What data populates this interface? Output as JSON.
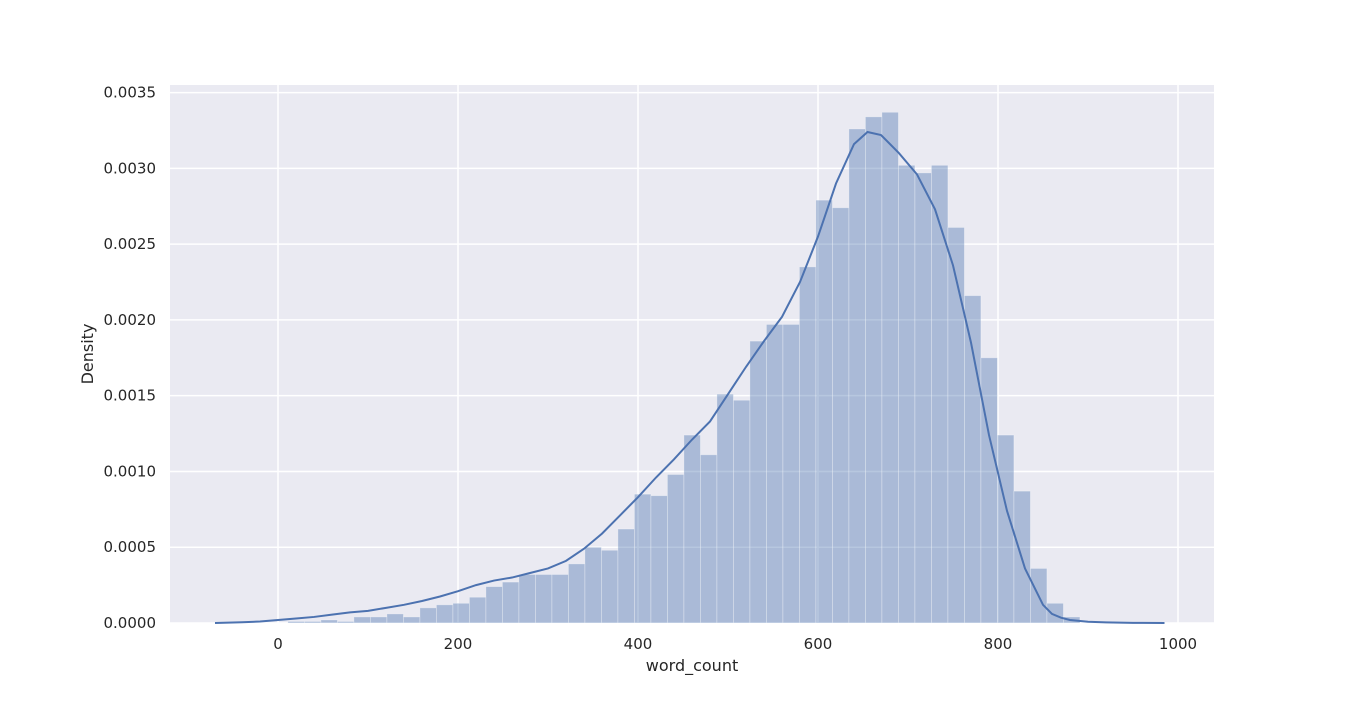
{
  "chart_data": {
    "type": "bar",
    "subtype": "histogram-with-kde",
    "title": "",
    "xlabel": "word_count",
    "ylabel": "Density",
    "xlim": [
      -120,
      1040
    ],
    "ylim": [
      0,
      0.00355
    ],
    "xticks": [
      0,
      200,
      400,
      600,
      800,
      1000
    ],
    "xtick_labels": [
      "0",
      "200",
      "400",
      "600",
      "800",
      "1000"
    ],
    "yticks": [
      0,
      0.0005,
      0.001,
      0.0015,
      0.002,
      0.0025,
      0.003,
      0.0035
    ],
    "ytick_labels": [
      "0.0000",
      "0.0005",
      "0.0010",
      "0.0015",
      "0.0020",
      "0.0025",
      "0.0030",
      "0.0035"
    ],
    "grid": true,
    "background": "#eaeaf2",
    "bar_color": "#4c72b0",
    "bar_alpha": 0.4,
    "line_color": "#4c72b0",
    "bins": {
      "left": [
        11,
        29.33,
        47.67,
        66,
        84.33,
        102.67,
        121,
        139.33,
        157.67,
        176,
        194.33,
        212.67,
        231,
        249.33,
        267.67,
        286,
        304.33,
        322.67,
        341,
        359.33,
        377.67,
        396,
        414.33,
        432.67,
        451,
        469.33,
        487.67,
        506,
        524.33,
        542.67,
        561,
        579.33,
        597.67,
        616,
        634.33,
        652.67,
        671,
        689.33,
        707.67,
        726,
        744.33,
        762.67,
        781,
        799.33,
        817.67,
        836,
        854.33,
        872.67
      ],
      "width": 18.33,
      "values": [
        1e-05,
        1e-05,
        2e-05,
        1e-05,
        4e-05,
        4e-05,
        6e-05,
        4e-05,
        0.0001,
        0.00012,
        0.00013,
        0.00017,
        0.00024,
        0.00027,
        0.00032,
        0.00032,
        0.00032,
        0.00039,
        0.0005,
        0.00048,
        0.00062,
        0.00085,
        0.00084,
        0.00098,
        0.00124,
        0.00111,
        0.00151,
        0.00147,
        0.00186,
        0.00197,
        0.00197,
        0.00235,
        0.00279,
        0.00274,
        0.00326,
        0.00334,
        0.00337,
        0.00302,
        0.00297,
        0.00302,
        0.00261,
        0.00216,
        0.00175,
        0.00124,
        0.00087,
        0.00036,
        0.00013,
        4e-05
      ]
    },
    "kde": {
      "x": [
        -70,
        -40,
        -20,
        0,
        20,
        40,
        60,
        80,
        100,
        120,
        140,
        160,
        180,
        200,
        220,
        240,
        260,
        280,
        300,
        320,
        340,
        360,
        380,
        400,
        420,
        440,
        460,
        480,
        500,
        520,
        540,
        560,
        580,
        600,
        620,
        640,
        655,
        670,
        690,
        710,
        730,
        750,
        770,
        790,
        810,
        830,
        850,
        860,
        870,
        880,
        900,
        920,
        950,
        985
      ],
      "y": [
        0,
        5e-06,
        1e-05,
        2e-05,
        3e-05,
        4e-05,
        5.5e-05,
        7e-05,
        8e-05,
        0.0001,
        0.00012,
        0.000145,
        0.000175,
        0.00021,
        0.00025,
        0.00028,
        0.0003,
        0.00033,
        0.00036,
        0.00041,
        0.00049,
        0.00059,
        0.00071,
        0.00083,
        0.00096,
        0.00108,
        0.00121,
        0.00133,
        0.00151,
        0.00169,
        0.00186,
        0.00202,
        0.00225,
        0.00255,
        0.0029,
        0.00316,
        0.00324,
        0.00322,
        0.0031,
        0.00296,
        0.00273,
        0.00236,
        0.00185,
        0.00124,
        0.00074,
        0.00036,
        0.00012,
        6e-05,
        3.5e-05,
        2e-05,
        8e-06,
        4e-06,
        1e-06,
        0
      ]
    }
  }
}
